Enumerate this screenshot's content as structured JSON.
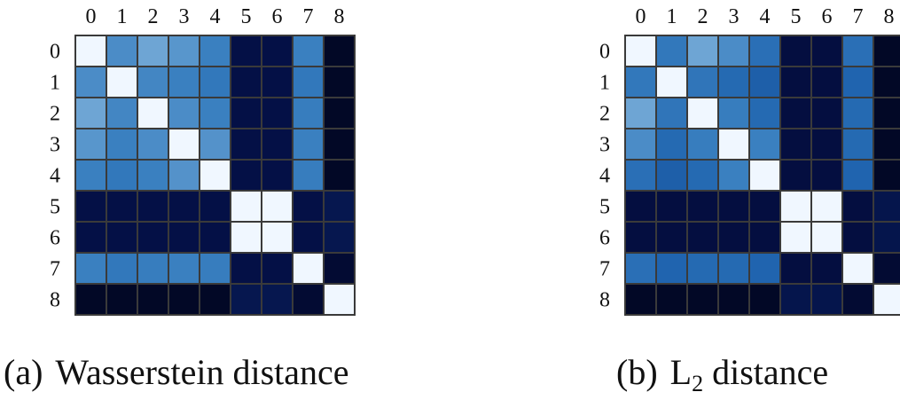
{
  "chart_data": [
    {
      "type": "heatmap",
      "caption_label": "(a)",
      "caption_text": "Wasserstein distance",
      "x_ticks": [
        "0",
        "1",
        "2",
        "3",
        "4",
        "5",
        "6",
        "7",
        "8"
      ],
      "y_ticks": [
        "0",
        "1",
        "2",
        "3",
        "4",
        "5",
        "6",
        "7",
        "8"
      ],
      "colormap": "Blues (white = 0 distance, dark navy = max)",
      "grid": true,
      "values": [
        [
          0.0,
          0.58,
          0.5,
          0.55,
          0.62,
          0.95,
          0.95,
          0.62,
          1.0
        ],
        [
          0.58,
          0.0,
          0.6,
          0.62,
          0.65,
          0.95,
          0.95,
          0.65,
          1.0
        ],
        [
          0.5,
          0.6,
          0.0,
          0.58,
          0.62,
          0.95,
          0.95,
          0.63,
          1.0
        ],
        [
          0.55,
          0.62,
          0.58,
          0.0,
          0.56,
          0.95,
          0.95,
          0.62,
          1.0
        ],
        [
          0.62,
          0.65,
          0.62,
          0.56,
          0.0,
          0.95,
          0.95,
          0.63,
          1.0
        ],
        [
          0.95,
          0.95,
          0.95,
          0.95,
          0.95,
          0.0,
          0.0,
          0.95,
          0.92
        ],
        [
          0.95,
          0.95,
          0.95,
          0.95,
          0.95,
          0.0,
          0.0,
          0.95,
          0.92
        ],
        [
          0.62,
          0.65,
          0.63,
          0.62,
          0.63,
          0.95,
          0.95,
          0.0,
          0.98
        ],
        [
          1.0,
          1.0,
          1.0,
          1.0,
          1.0,
          0.92,
          0.92,
          0.98,
          0.0
        ]
      ]
    },
    {
      "type": "heatmap",
      "caption_label": "(b)",
      "caption_text": "L",
      "caption_sub": "2",
      "caption_text_after": " distance",
      "x_ticks": [
        "0",
        "1",
        "2",
        "3",
        "4",
        "5",
        "6",
        "7",
        "8"
      ],
      "y_ticks": [
        "0",
        "1",
        "2",
        "3",
        "4",
        "5",
        "6",
        "7",
        "8"
      ],
      "colormap": "Blues (white = 0 distance, dark navy = max)",
      "grid": true,
      "values": [
        [
          0.0,
          0.65,
          0.5,
          0.58,
          0.68,
          0.96,
          0.96,
          0.68,
          1.0
        ],
        [
          0.65,
          0.0,
          0.66,
          0.7,
          0.73,
          0.96,
          0.96,
          0.72,
          1.0
        ],
        [
          0.5,
          0.66,
          0.0,
          0.63,
          0.7,
          0.96,
          0.96,
          0.7,
          1.0
        ],
        [
          0.58,
          0.7,
          0.63,
          0.0,
          0.62,
          0.96,
          0.96,
          0.7,
          1.0
        ],
        [
          0.68,
          0.73,
          0.7,
          0.62,
          0.0,
          0.96,
          0.96,
          0.72,
          1.0
        ],
        [
          0.96,
          0.96,
          0.96,
          0.96,
          0.96,
          0.0,
          0.0,
          0.96,
          0.93
        ],
        [
          0.96,
          0.96,
          0.96,
          0.96,
          0.96,
          0.0,
          0.0,
          0.96,
          0.93
        ],
        [
          0.68,
          0.72,
          0.7,
          0.7,
          0.72,
          0.96,
          0.96,
          0.0,
          0.98
        ],
        [
          1.0,
          1.0,
          1.0,
          1.0,
          1.0,
          0.93,
          0.93,
          0.98,
          0.0
        ]
      ]
    }
  ]
}
